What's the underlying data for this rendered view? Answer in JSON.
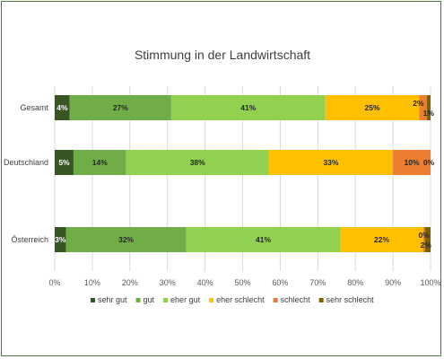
{
  "chart_data": {
    "type": "bar",
    "orientation": "horizontal",
    "stacked": "percent",
    "title": "Stimmung in der Landwirtschaft",
    "categories": [
      "Gesamt",
      "Deutschland",
      "Österreich"
    ],
    "series": [
      {
        "name": "sehr gut",
        "color": "#375623",
        "label_color": "#ffffff",
        "values": [
          4,
          5,
          3
        ],
        "labels": [
          "4%",
          "5%",
          "3%"
        ]
      },
      {
        "name": "gut",
        "color": "#70ad47",
        "label_color": "#262626",
        "values": [
          27,
          14,
          32
        ],
        "labels": [
          "27%",
          "14%",
          "32%"
        ]
      },
      {
        "name": "eher gut",
        "color": "#92d050",
        "label_color": "#262626",
        "values": [
          41,
          38,
          41
        ],
        "labels": [
          "41%",
          "38%",
          "41%"
        ]
      },
      {
        "name": "eher schlecht",
        "color": "#ffc000",
        "label_color": "#262626",
        "values": [
          25,
          33,
          22
        ],
        "labels": [
          "25%",
          "33%",
          "22%"
        ]
      },
      {
        "name": "schlecht",
        "color": "#ed7d31",
        "label_color": "#262626",
        "values": [
          2,
          10,
          0.5
        ],
        "labels": [
          "2%",
          "10%",
          "0%"
        ]
      },
      {
        "name": "sehr schlecht",
        "color": "#7f6000",
        "label_color": "#262626",
        "values": [
          1,
          0,
          1.5
        ],
        "labels": [
          "1%",
          "0%",
          "2%"
        ]
      }
    ],
    "x_ticks": [
      "0%",
      "10%",
      "20%",
      "30%",
      "40%",
      "50%",
      "60%",
      "70%",
      "80%",
      "90%",
      "100%"
    ],
    "xlim": [
      0,
      100
    ],
    "grid": true,
    "legend_position": "bottom"
  }
}
